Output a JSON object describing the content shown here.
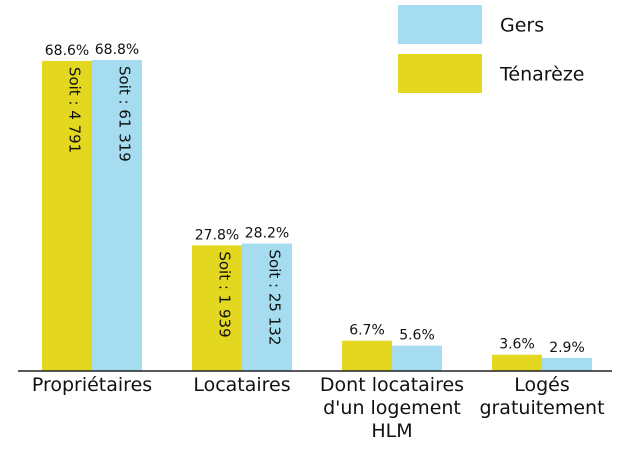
{
  "chart_data": {
    "type": "bar",
    "categories": [
      "Propriétaires",
      "Locataires",
      "Dont locataires d'un logement HLM",
      "Logés gratuitement"
    ],
    "series": [
      {
        "name": "Ténarèze",
        "color": "#e3d81f",
        "values": [
          68.6,
          27.8,
          6.7,
          3.6
        ],
        "value_labels": [
          "68.6%",
          "27.8%",
          "6.7%",
          "3.6%"
        ],
        "inner_labels": [
          "Soit : 4 791",
          "Soit : 1 939",
          null,
          null
        ]
      },
      {
        "name": "Gers",
        "color": "#a6dcf0",
        "values": [
          68.8,
          28.2,
          5.6,
          2.9
        ],
        "value_labels": [
          "68.8%",
          "28.2%",
          "5.6%",
          "2.9%"
        ],
        "inner_labels": [
          "Soit : 61 319",
          "Soit : 25 132",
          null,
          null
        ]
      }
    ],
    "legend": "top-right"
  }
}
